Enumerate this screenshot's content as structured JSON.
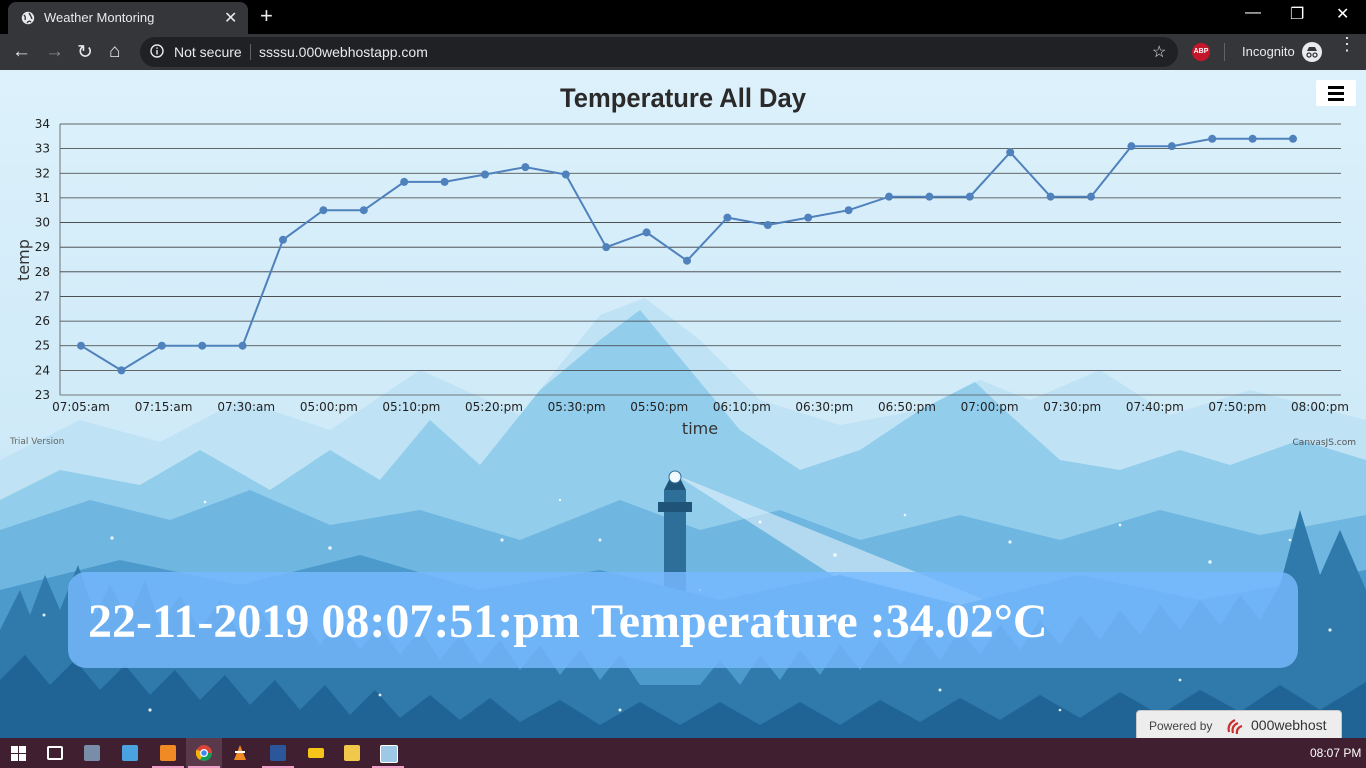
{
  "browser": {
    "tab_title": "Weather Montoring",
    "tab_close": "✕",
    "new_tab": "+",
    "not_secure": "Not secure",
    "url": "ssssu.000webhostapp.com",
    "incognito_label": "Incognito",
    "adblock_label": "ABP",
    "window_controls": {
      "minimize": "—",
      "restore": "❐",
      "close": "✕"
    },
    "nav": {
      "back": "←",
      "forward": "→",
      "reload": "↻",
      "home": "⌂",
      "star": "☆",
      "menu": "⋮"
    }
  },
  "chart_data": {
    "type": "line",
    "title": "Temperature All Day",
    "xlabel": "time",
    "ylabel": "temp",
    "ylim": [
      23,
      34
    ],
    "y_ticks": [
      23,
      24,
      25,
      26,
      27,
      28,
      29,
      30,
      31,
      32,
      33,
      34
    ],
    "x_tick_labels": [
      "07:05:am",
      "07:15:am",
      "07:30:am",
      "05:00:pm",
      "05:10:pm",
      "05:20:pm",
      "05:30:pm",
      "05:50:pm",
      "06:10:pm",
      "06:30:pm",
      "06:50:pm",
      "07:00:pm",
      "07:30:pm",
      "07:40:pm",
      "07:50:pm",
      "08:00:pm"
    ],
    "values": [
      25,
      24,
      25,
      25,
      25,
      29.3,
      30.5,
      30.5,
      31.65,
      31.65,
      31.95,
      32.25,
      31.95,
      29,
      29.6,
      28.45,
      30.2,
      29.9,
      30.2,
      30.5,
      31.05,
      31.05,
      31.05,
      32.85,
      31.05,
      31.05,
      33.1,
      33.1,
      33.4,
      33.4,
      33.4
    ],
    "grid": true,
    "line_color": "#4f81bc",
    "trial_label": "Trial Version",
    "credit_label": "CanvasJS.com"
  },
  "banner": {
    "date": "22-11-2019",
    "time": "08:07:51:pm",
    "temperature_label": "Temperature :",
    "temperature_value": "34.02°C"
  },
  "footer": {
    "powered_by": "Powered by",
    "brand": "000webhost"
  },
  "taskbar": {
    "clock": "08:07 PM",
    "apps": [
      "start-icon",
      "task-view-icon",
      "photos-icon",
      "explorer-icon",
      "sublime-icon",
      "chrome-icon",
      "vlc-icon",
      "word-icon",
      "drive-icon",
      "folder-icon",
      "screen-icon"
    ]
  },
  "colors": {
    "page_bg": "#dcf1fb",
    "banner_bg": "#78baff",
    "taskbar_bg": "#402030",
    "browser_bg": "#35363a"
  }
}
